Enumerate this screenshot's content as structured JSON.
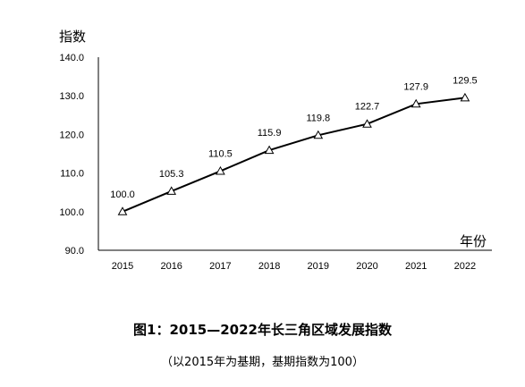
{
  "chart_data": {
    "type": "line",
    "title": "图1：2015—2022年长三角区域发展指数",
    "subtitle": "（以2015年为基期，基期指数为100）",
    "ylabel": "指数",
    "xlabel": "年份",
    "categories": [
      "2015",
      "2016",
      "2017",
      "2018",
      "2019",
      "2020",
      "2021",
      "2022"
    ],
    "values": [
      100.0,
      105.3,
      110.5,
      115.9,
      119.8,
      122.7,
      127.9,
      129.5
    ],
    "data_labels": [
      "100.0",
      "105.3",
      "110.5",
      "115.9",
      "119.8",
      "122.7",
      "127.9",
      "129.5"
    ],
    "yticks": [
      "90.0",
      "100.0",
      "110.0",
      "120.0",
      "130.0",
      "140.0"
    ],
    "ylim": [
      90,
      140
    ],
    "grid": false,
    "marker": "triangle-open",
    "line_color": "#000000"
  }
}
